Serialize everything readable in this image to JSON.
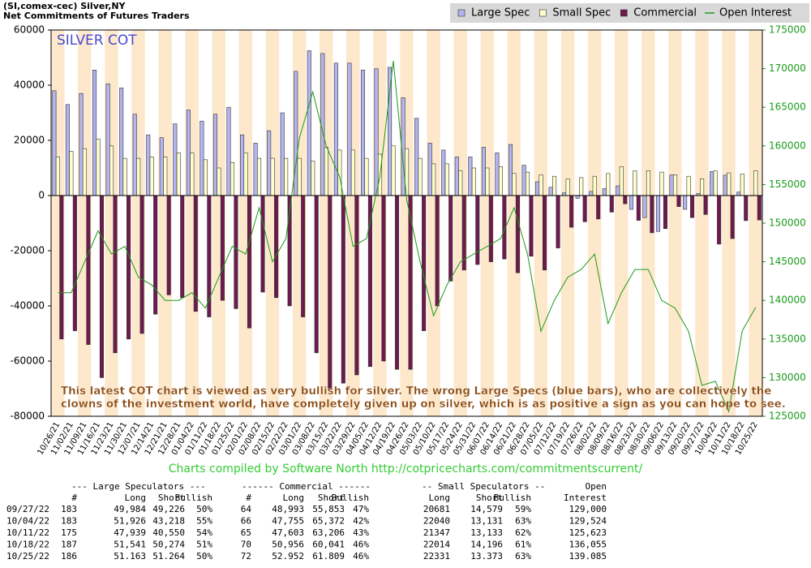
{
  "chart_data": {
    "type": "bar",
    "title": "(SI,comex-cec) Silver,NY",
    "subtitle": "Net Commitments of Futures Traders",
    "label": "SILVER COT",
    "annotation": [
      "This latest COT chart is viewed as very bullish for silver. The wrong Large Specs  (blue bars), who are collectively the",
      "clowns of the investment world, have completely given up on silver, which is as positive a sign as you can hope to see."
    ],
    "footer": "Charts compiled by Software North  http://cotpricecharts.com/commitmentscurrent/",
    "categories": [
      "10/26/21",
      "11/02/21",
      "11/09/21",
      "11/16/21",
      "11/23/21",
      "11/30/21",
      "12/07/21",
      "12/14/21",
      "12/21/21",
      "12/28/21",
      "01/04/22",
      "01/11/22",
      "01/18/22",
      "01/25/22",
      "02/01/22",
      "02/08/22",
      "02/15/22",
      "02/22/22",
      "03/01/22",
      "03/08/22",
      "03/15/22",
      "03/22/22",
      "03/29/22",
      "04/05/22",
      "04/12/22",
      "04/19/22",
      "04/26/22",
      "05/03/22",
      "05/10/22",
      "05/17/22",
      "05/24/22",
      "05/31/22",
      "06/07/22",
      "06/14/22",
      "06/21/22",
      "06/28/22",
      "07/05/22",
      "07/12/22",
      "07/19/22",
      "07/26/22",
      "08/02/22",
      "08/09/22",
      "08/16/22",
      "08/23/22",
      "08/30/22",
      "09/06/22",
      "09/13/22",
      "09/20/22",
      "09/27/22",
      "10/04/22",
      "10/11/22",
      "10/18/22",
      "10/25/22"
    ],
    "series": [
      {
        "name": "Large Spec",
        "color": "#b4b4ee",
        "values": [
          38000,
          33000,
          37000,
          45500,
          40500,
          39000,
          29500,
          22000,
          21000,
          26000,
          31000,
          27000,
          29500,
          32000,
          22000,
          19000,
          23500,
          30000,
          45000,
          52500,
          51500,
          48000,
          48000,
          45500,
          46000,
          46500,
          35500,
          28000,
          19000,
          16500,
          14000,
          14000,
          17500,
          15500,
          18500,
          11000,
          5000,
          3000,
          1000,
          -1000,
          1500,
          2500,
          3500,
          -5000,
          -8000,
          -13000,
          7500,
          -5000,
          758,
          8708,
          7389,
          1267,
          -101
        ]
      },
      {
        "name": "Small Spec",
        "color": "#ffffcc",
        "values": [
          14000,
          16000,
          17000,
          20500,
          18000,
          13500,
          13500,
          14000,
          14000,
          15500,
          15500,
          13000,
          10000,
          12000,
          15500,
          13500,
          13500,
          13500,
          13500,
          12500,
          17500,
          16500,
          16500,
          13500,
          15000,
          18000,
          17000,
          13500,
          11500,
          11500,
          9000,
          10000,
          10000,
          10500,
          8000,
          8500,
          7500,
          7000,
          6000,
          6500,
          7000,
          8000,
          10500,
          9000,
          9000,
          8500,
          7500,
          7000,
          6102,
          8909,
          8214,
          7818,
          8958
        ]
      },
      {
        "name": "Commercial",
        "color": "#6e1a4e",
        "values": [
          -52000,
          -49000,
          -54000,
          -66000,
          -57000,
          -52000,
          -50000,
          -43000,
          -36000,
          -37000,
          -42000,
          -44000,
          -38000,
          -41000,
          -48000,
          -35000,
          -37000,
          -40000,
          -44000,
          -57000,
          -70000,
          -68000,
          -65000,
          -62000,
          -60000,
          -63000,
          -63000,
          -49000,
          -40000,
          -31000,
          -27000,
          -25000,
          -24000,
          -23000,
          -28000,
          -22000,
          -27000,
          -19000,
          -11500,
          -9500,
          -8500,
          -6000,
          -3000,
          -9000,
          -13500,
          -12000,
          -4000,
          -8000,
          -6860,
          -17617,
          -15603,
          -9085,
          -8857
        ]
      },
      {
        "name": "Open Interest",
        "color": "#1a9a1a",
        "type": "line",
        "axis": "y2",
        "values": [
          141000,
          141000,
          145000,
          149000,
          146000,
          147000,
          143000,
          142000,
          140000,
          140000,
          141000,
          139000,
          143000,
          147000,
          146000,
          152000,
          145000,
          148000,
          161000,
          167000,
          160000,
          156000,
          147000,
          148000,
          156000,
          171000,
          153000,
          145000,
          138000,
          142000,
          145000,
          146000,
          147000,
          148000,
          152000,
          146000,
          136000,
          140000,
          143000,
          144000,
          146000,
          137000,
          141000,
          144000,
          144000,
          140000,
          139000,
          136000,
          129000,
          129524,
          125623,
          136055,
          139085
        ]
      }
    ],
    "ylim": [
      -80000,
      60000
    ],
    "yticks": [
      60000,
      40000,
      20000,
      0,
      -20000,
      -40000,
      -60000,
      -80000
    ],
    "y2lim": [
      125000,
      175000
    ],
    "y2ticks": [
      175000,
      170000,
      165000,
      160000,
      155000,
      150000,
      145000,
      140000,
      135000,
      130000,
      125000
    ]
  },
  "table": {
    "group_headers": [
      "--- Large Speculators ---",
      "------ Commercial ------",
      "-- Small Speculators --",
      "Open"
    ],
    "columns": [
      "#",
      "Long",
      "Short",
      "Bullish",
      "#",
      "Long",
      "Short",
      "Bullish",
      "Long",
      "Short",
      "Bullish",
      "Interest"
    ],
    "rows": [
      [
        "09/27/22",
        "183",
        "49,984",
        "49,226",
        "50%",
        "64",
        "48,993",
        "55,853",
        "47%",
        "20681",
        "14,579",
        "59%",
        "129,000"
      ],
      [
        "10/04/22",
        "183",
        "51,926",
        "43,218",
        "55%",
        "66",
        "47,755",
        "65,372",
        "42%",
        "22040",
        "13,131",
        "63%",
        "129,524"
      ],
      [
        "10/11/22",
        "175",
        "47,939",
        "40,550",
        "54%",
        "65",
        "47,603",
        "63,206",
        "43%",
        "21347",
        "13,133",
        "62%",
        "125,623"
      ],
      [
        "10/18/22",
        "187",
        "51,541",
        "50,274",
        "51%",
        "70",
        "50,956",
        "60,041",
        "46%",
        "22014",
        "14,196",
        "61%",
        "136,055"
      ],
      [
        "10/25/22",
        "186",
        "51.163",
        "51.264",
        "50%",
        "72",
        "52.952",
        "61.809",
        "46%",
        "22331",
        "13.373",
        "63%",
        "139.085"
      ]
    ]
  }
}
